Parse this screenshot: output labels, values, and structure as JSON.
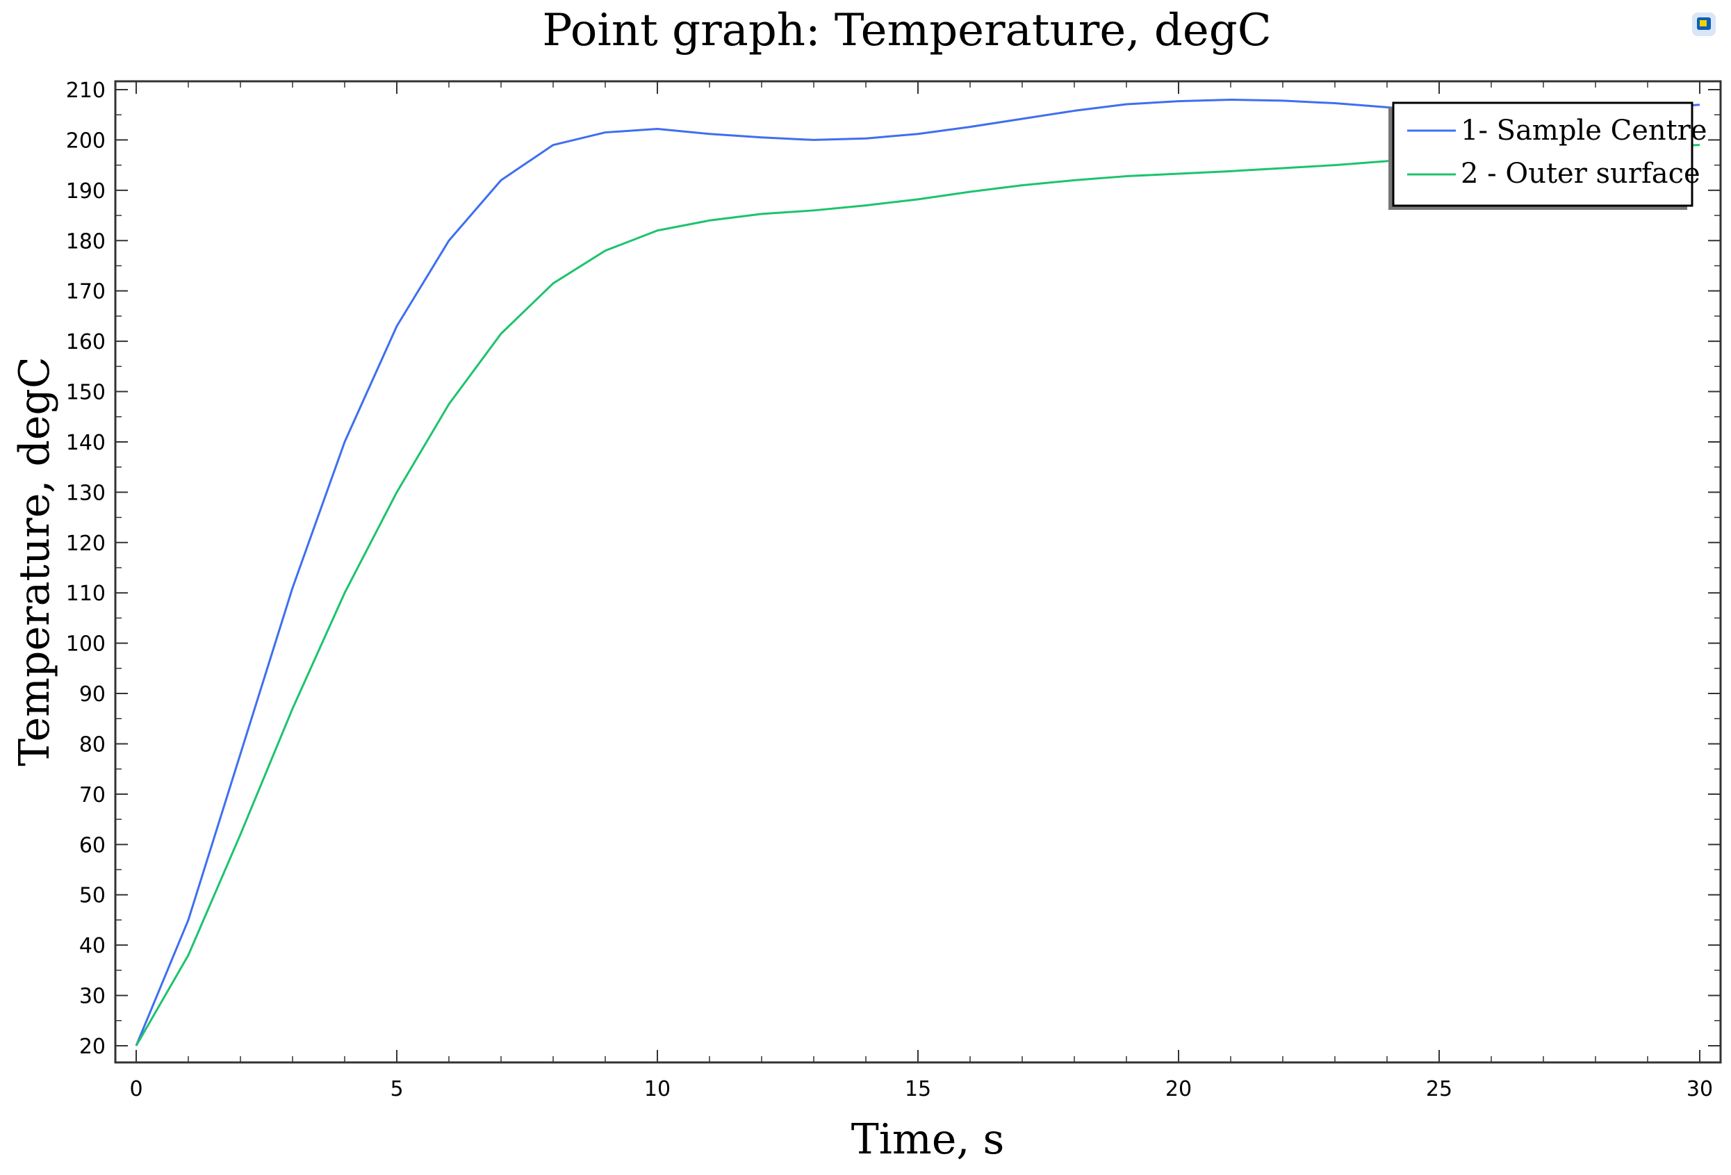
{
  "chart_data": {
    "type": "line",
    "title": "Point graph: Temperature, degC",
    "xlabel": "Time, s",
    "ylabel": "Temperature, degC",
    "xlim": [
      0,
      30
    ],
    "ylim": [
      20,
      210
    ],
    "x_ticks": [
      0,
      5,
      10,
      15,
      20,
      25,
      30
    ],
    "y_ticks": [
      20,
      30,
      40,
      50,
      60,
      70,
      80,
      90,
      100,
      110,
      120,
      130,
      140,
      150,
      160,
      170,
      180,
      190,
      200,
      210
    ],
    "grid": false,
    "legend_position": "top-right",
    "x": [
      0,
      1,
      2,
      3,
      4,
      5,
      6,
      7,
      8,
      9,
      10,
      11,
      12,
      13,
      14,
      15,
      16,
      17,
      18,
      19,
      20,
      21,
      22,
      23,
      24,
      25,
      26,
      27,
      28,
      29,
      30
    ],
    "series": [
      {
        "name": "1- Sample Centre",
        "color": "#3e6ff0",
        "values": [
          20,
          45,
          78,
          111,
          140,
          163,
          180,
          192,
          199,
          201.5,
          202.2,
          201.2,
          200.5,
          200,
          200.3,
          201.2,
          202.6,
          204.2,
          205.8,
          207.1,
          207.7,
          208,
          207.8,
          207.3,
          206.5,
          205.6,
          205.4,
          205.5,
          205.8,
          206.3,
          207
        ]
      },
      {
        "name": "2 - Outer surface",
        "color": "#1dc36d",
        "values": [
          20,
          38,
          62,
          87,
          110,
          130,
          147.5,
          161.5,
          171.5,
          178,
          182,
          184,
          185.3,
          186,
          187,
          188.2,
          189.7,
          191,
          192,
          192.8,
          193.3,
          193.8,
          194.4,
          195,
          195.8,
          196.5,
          197.1,
          197.7,
          198.2,
          198.6,
          199
        ]
      }
    ]
  },
  "logo_icon": "comsol-logo-icon"
}
